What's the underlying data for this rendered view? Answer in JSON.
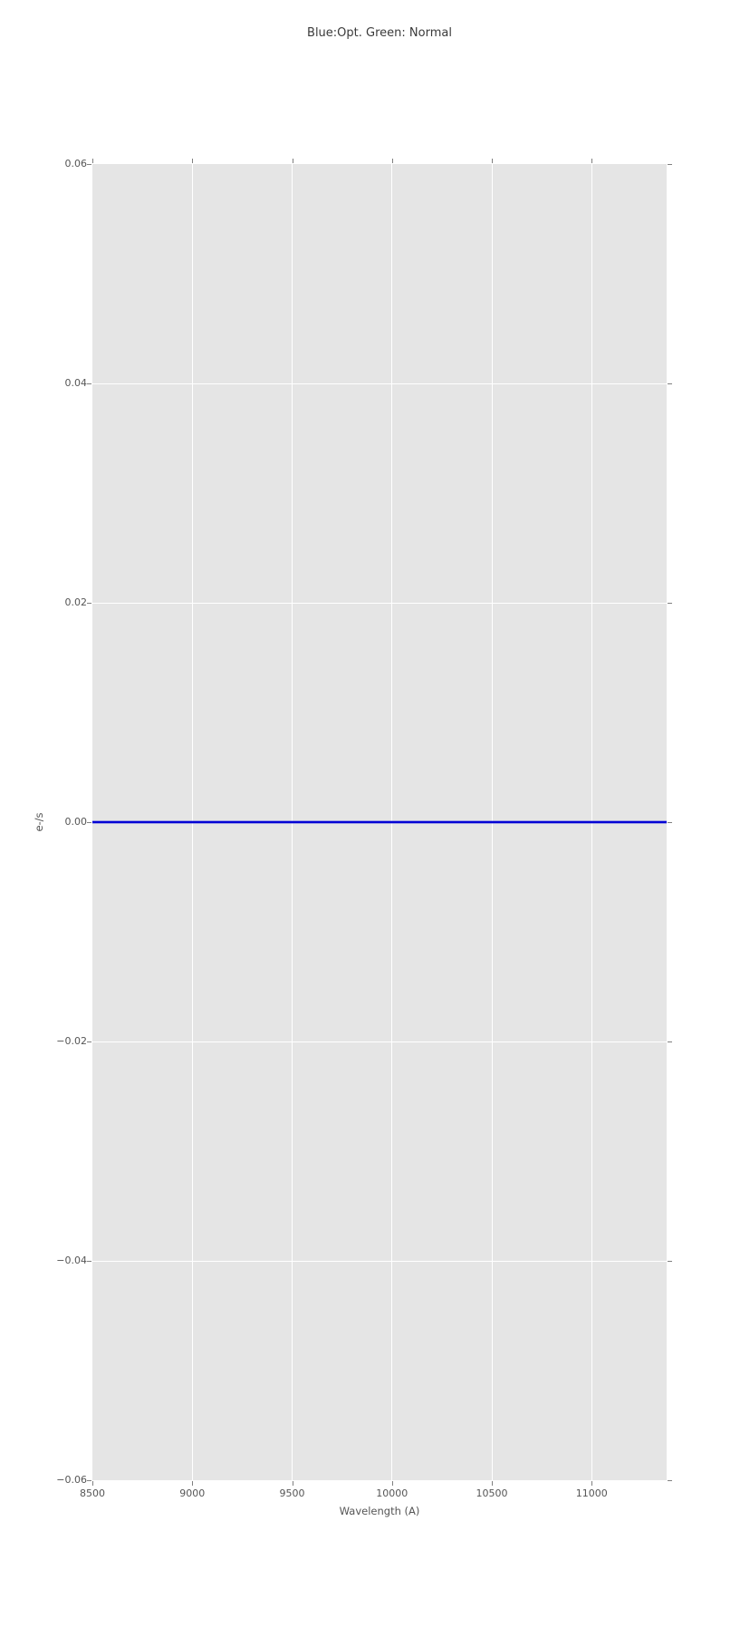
{
  "chart_data": {
    "type": "line",
    "title": "Blue:Opt. Green: Normal",
    "xlabel": "Wavelength (A)",
    "ylabel": "e-/s",
    "xlim": [
      8500,
      11375
    ],
    "ylim": [
      -0.06,
      0.06
    ],
    "xticks": [
      8500,
      9000,
      9500,
      10000,
      10500,
      11000
    ],
    "xtick_labels": [
      "8500",
      "9000",
      "9500",
      "10000",
      "10500",
      "11000"
    ],
    "yticks": [
      -0.06,
      -0.04,
      -0.02,
      0,
      0.02,
      0.04,
      0.06
    ],
    "ytick_labels": [
      "−0.06",
      "−0.04",
      "−0.02",
      "0.00",
      "0.02",
      "0.04",
      "0.06"
    ],
    "grid": true,
    "legend": "none",
    "series": [
      {
        "name": "Blue (Opt.)",
        "color": "#0000d4",
        "x": [
          8500,
          11375
        ],
        "y": [
          0,
          0
        ]
      }
    ],
    "style": {
      "plot_background": "#e5e5e5",
      "grid_color": "#ffffff",
      "tick_color": "#7f7f7f",
      "tick_label_color": "#555555",
      "title_color": "#3a3a3a",
      "figure_background": "#ffffff"
    }
  }
}
